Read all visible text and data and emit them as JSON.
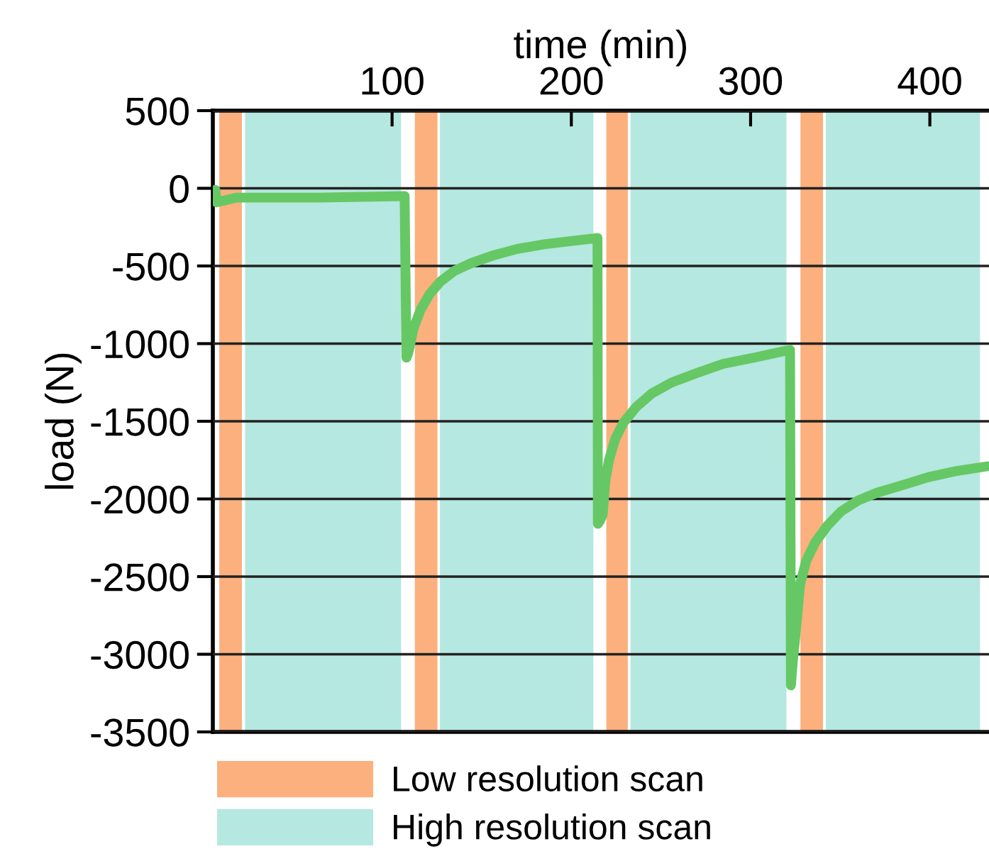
{
  "chart_data": {
    "type": "line",
    "xlabel": "time (min)",
    "ylabel": "load (N)",
    "xlim": [
      0,
      433
    ],
    "xticks": [
      100,
      200,
      300,
      400
    ],
    "ylim": [
      -3500,
      500
    ],
    "yticks": [
      500,
      0,
      -500,
      -1000,
      -1500,
      -2000,
      -2500,
      -3000,
      -3500
    ],
    "grid": "y",
    "legend": "bottom",
    "marker": "none",
    "line_style": "solid",
    "series": [
      {
        "color": "#66c864",
        "x": [
          1.4,
          2,
          13,
          60,
          107,
          108,
          109,
          110,
          112,
          116,
          121,
          127,
          135,
          144.5,
          157,
          170,
          185,
          200,
          214.6,
          214.8,
          216,
          217.5,
          219,
          221,
          224.6,
          229,
          236,
          245,
          256,
          270,
          284.7,
          302,
          322,
          322.5,
          323.5,
          325,
          327.6,
          331,
          336,
          343,
          350.5,
          360,
          370.5,
          385,
          399,
          415,
          432
        ],
        "values": [
          -10,
          -90,
          -60,
          -60,
          -50,
          -1090,
          -1060,
          -1010,
          -900,
          -780,
          -680,
          -600,
          -530,
          -480,
          -430,
          -390,
          -360,
          -340,
          -320,
          -2160,
          -2140,
          -2100,
          -1880,
          -1750,
          -1610,
          -1510,
          -1410,
          -1320,
          -1250,
          -1190,
          -1130,
          -1090,
          -1040,
          -3200,
          -3050,
          -2880,
          -2550,
          -2400,
          -2280,
          -2170,
          -2080,
          -2010,
          -1960,
          -1910,
          -1860,
          -1820,
          -1790
        ]
      }
    ],
    "bands": [
      {
        "axis": "x",
        "from": 3.6,
        "to": 16.2,
        "color": "#fbb07e",
        "label": "Low resolution scan"
      },
      {
        "axis": "x",
        "from": 18,
        "to": 105,
        "color": "#b5e8e0",
        "label": "High resolution scan"
      },
      {
        "axis": "x",
        "from": 112.7,
        "to": 125.3,
        "color": "#fbb07e"
      },
      {
        "axis": "x",
        "from": 126.7,
        "to": 212.3,
        "color": "#b5e8e0"
      },
      {
        "axis": "x",
        "from": 219.5,
        "to": 231.5,
        "color": "#fbb07e"
      },
      {
        "axis": "x",
        "from": 233,
        "to": 320,
        "color": "#b5e8e0"
      },
      {
        "axis": "x",
        "from": 327.8,
        "to": 340.4,
        "color": "#fbb07e"
      },
      {
        "axis": "x",
        "from": 342,
        "to": 428,
        "color": "#b5e8e0"
      }
    ]
  }
}
